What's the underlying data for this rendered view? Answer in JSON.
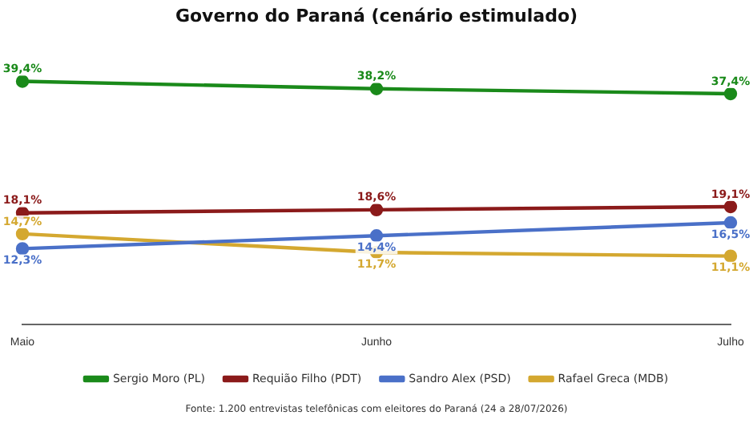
{
  "chart_data": {
    "type": "line",
    "title": "Governo do Paraná (cenário estimulado)",
    "categories": [
      "Maio",
      "Junho",
      "Julho"
    ],
    "marker": "circle",
    "grid": false,
    "legend": "bottom",
    "tick_labels": "x",
    "series": [
      {
        "name": "Sergio Moro (PL)",
        "color": "#1a8a1a",
        "values": [
          39.4,
          38.2,
          37.4
        ],
        "value_labels": [
          "39,4%",
          "38,2%",
          "37,4%"
        ]
      },
      {
        "name": "Requião Filho (PDT)",
        "color": "#8b1a1a",
        "values": [
          18.1,
          18.6,
          19.1
        ],
        "value_labels": [
          "18,1%",
          "18,6%",
          "19,1%"
        ]
      },
      {
        "name": "Sandro Alex (PSD)",
        "color": "#4a70c8",
        "values": [
          12.3,
          14.4,
          16.5
        ],
        "value_labels": [
          "12,3%",
          "14,4%",
          "16,5%"
        ]
      },
      {
        "name": "Rafael Greca (MDB)",
        "color": "#d4a830",
        "values": [
          14.7,
          11.7,
          11.1
        ],
        "value_labels": [
          "14,7%",
          "11,7%",
          "11,1%"
        ]
      }
    ],
    "annotations": [
      "Fonte: 1.200 entrevistas telefônicas com eleitores do Paraná (24 a 28/07/2026)"
    ]
  }
}
